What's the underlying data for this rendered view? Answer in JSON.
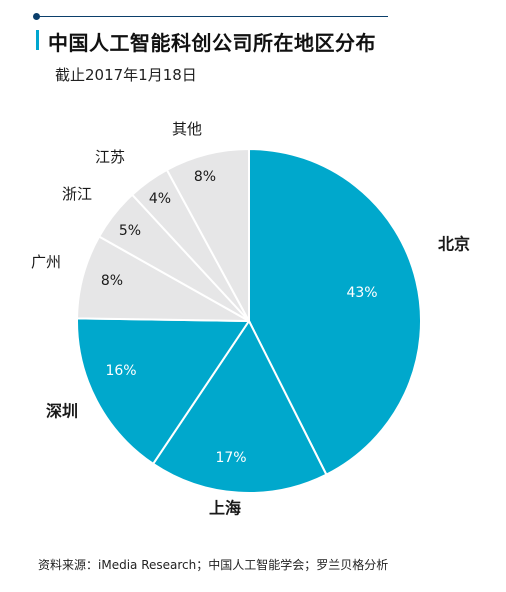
{
  "title": "中国人工智能科创公司所在地区分布",
  "subtitle": "截止2017年1月18日",
  "source": "资料来源：iMedia Research；中国人工智能学会；罗兰贝格分析",
  "colors": {
    "highlight": "#00a8cc",
    "muted": "#e6e6e7",
    "accent_line": "#0b3f6b"
  },
  "chart_data": {
    "type": "pie",
    "title": "中国人工智能科创公司所在地区分布",
    "slices": [
      {
        "label": "北京",
        "value": 43,
        "value_label": "43%",
        "highlight": true
      },
      {
        "label": "上海",
        "value": 17,
        "value_label": "17%",
        "highlight": true
      },
      {
        "label": "深圳",
        "value": 16,
        "value_label": "16%",
        "highlight": true
      },
      {
        "label": "广州",
        "value": 8,
        "value_label": "8%",
        "highlight": false
      },
      {
        "label": "浙江",
        "value": 5,
        "value_label": "5%",
        "highlight": false
      },
      {
        "label": "江苏",
        "value": 4,
        "value_label": "4%",
        "highlight": false
      },
      {
        "label": "其他",
        "value": 8,
        "value_label": "8%",
        "highlight": false
      }
    ]
  }
}
